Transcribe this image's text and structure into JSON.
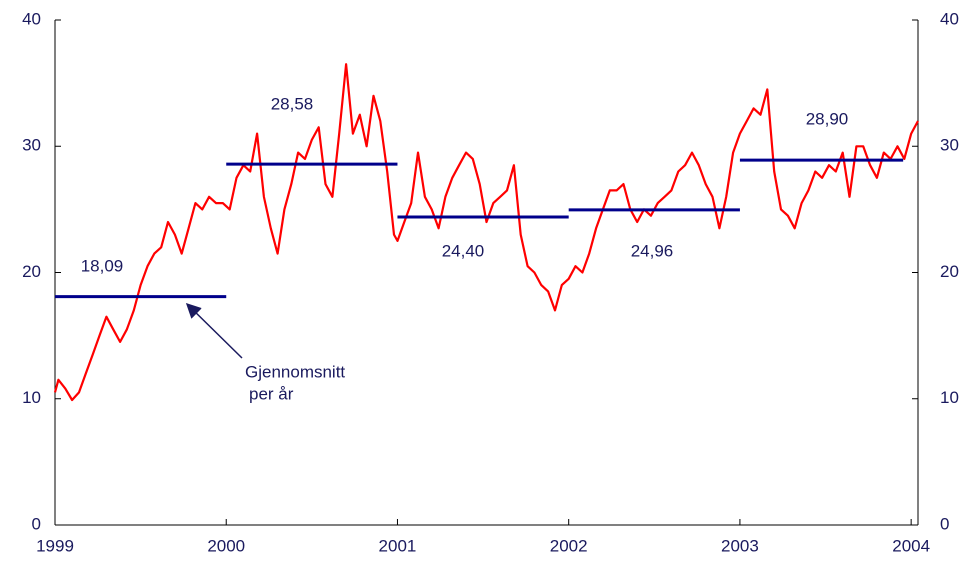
{
  "chart_data": {
    "type": "line",
    "x": [
      1999.0,
      1999.02,
      1999.06,
      1999.1,
      1999.14,
      1999.18,
      1999.22,
      1999.26,
      1999.3,
      1999.34,
      1999.38,
      1999.42,
      1999.46,
      1999.5,
      1999.54,
      1999.58,
      1999.62,
      1999.66,
      1999.7,
      1999.74,
      1999.78,
      1999.82,
      1999.86,
      1999.9,
      1999.94,
      1999.98,
      2000.02,
      2000.06,
      2000.1,
      2000.14,
      2000.18,
      2000.22,
      2000.26,
      2000.3,
      2000.34,
      2000.38,
      2000.42,
      2000.46,
      2000.5,
      2000.54,
      2000.58,
      2000.62,
      2000.66,
      2000.7,
      2000.74,
      2000.78,
      2000.82,
      2000.86,
      2000.9,
      2000.94,
      2000.98,
      2001.0,
      2001.04,
      2001.08,
      2001.12,
      2001.16,
      2001.2,
      2001.24,
      2001.28,
      2001.32,
      2001.36,
      2001.4,
      2001.44,
      2001.48,
      2001.52,
      2001.56,
      2001.6,
      2001.64,
      2001.68,
      2001.72,
      2001.76,
      2001.8,
      2001.84,
      2001.88,
      2001.92,
      2001.96,
      2002.0,
      2002.04,
      2002.08,
      2002.12,
      2002.16,
      2002.2,
      2002.24,
      2002.28,
      2002.32,
      2002.36,
      2002.4,
      2002.44,
      2002.48,
      2002.52,
      2002.56,
      2002.6,
      2002.64,
      2002.68,
      2002.72,
      2002.76,
      2002.8,
      2002.84,
      2002.88,
      2002.92,
      2002.96,
      2003.0,
      2003.04,
      2003.08,
      2003.12,
      2003.16,
      2003.2,
      2003.24,
      2003.28,
      2003.32,
      2003.36,
      2003.4,
      2003.44,
      2003.48,
      2003.52,
      2003.56,
      2003.6,
      2003.64,
      2003.68,
      2003.72,
      2003.76,
      2003.8,
      2003.84,
      2003.88,
      2003.92,
      2003.96,
      2004.0,
      2004.04
    ],
    "series": [
      {
        "color": "#ff0000",
        "values": [
          10.5,
          11.5,
          10.8,
          9.9,
          10.5,
          12,
          13.5,
          15,
          16.5,
          15.5,
          14.5,
          15.5,
          17,
          19,
          20.5,
          21.5,
          22,
          24,
          23,
          21.5,
          23.5,
          25.5,
          25,
          26,
          25.5,
          25.5,
          25,
          27.5,
          28.5,
          28,
          31,
          26,
          23.5,
          21.5,
          25,
          27,
          29.5,
          29,
          30.5,
          31.5,
          27,
          26,
          31,
          36.5,
          31,
          32.5,
          30,
          34,
          32,
          28,
          23,
          22.5,
          24,
          25.5,
          29.5,
          26,
          25,
          23.5,
          26,
          27.5,
          28.5,
          29.5,
          29,
          27,
          24,
          25.5,
          26,
          26.5,
          28.5,
          23,
          20.5,
          20,
          19,
          18.5,
          17,
          19,
          19.5,
          20.5,
          20,
          21.5,
          23.5,
          25,
          26.5,
          26.5,
          27,
          25,
          24,
          25,
          24.5,
          25.5,
          26,
          26.5,
          28,
          28.5,
          29.5,
          28.5,
          27,
          26,
          23.5,
          26,
          29.5,
          31,
          32,
          33,
          32.5,
          34.5,
          28,
          25,
          24.5,
          23.5,
          25.5,
          26.5,
          28,
          27.5,
          28.5,
          28,
          29.5,
          26,
          30,
          30,
          28.5,
          27.5,
          29.5,
          29,
          30,
          29,
          31,
          32
        ]
      }
    ],
    "averages": {
      "color": "#00008b",
      "x_start": [
        1999,
        2000,
        2001,
        2002,
        2003
      ],
      "x_end": [
        2000,
        2001,
        2002,
        2003,
        2004
      ],
      "values": [
        18.09,
        28.58,
        24.4,
        24.96,
        28.9
      ],
      "value_labels": [
        "18,09",
        "28,58",
        "24,40",
        "24,96",
        "28,90"
      ]
    },
    "annotation": [
      "Gjennomsnitt",
      "per år"
    ],
    "xlim": [
      1999,
      2004.04
    ],
    "xticks": [
      1999,
      2000,
      2001,
      2002,
      2003,
      2004
    ],
    "ylim": [
      0,
      40
    ],
    "yticks": [
      0,
      10,
      20,
      30,
      40
    ],
    "y2lim": [
      0,
      40
    ],
    "y2ticks": [
      0,
      10,
      20,
      30,
      40
    ]
  }
}
